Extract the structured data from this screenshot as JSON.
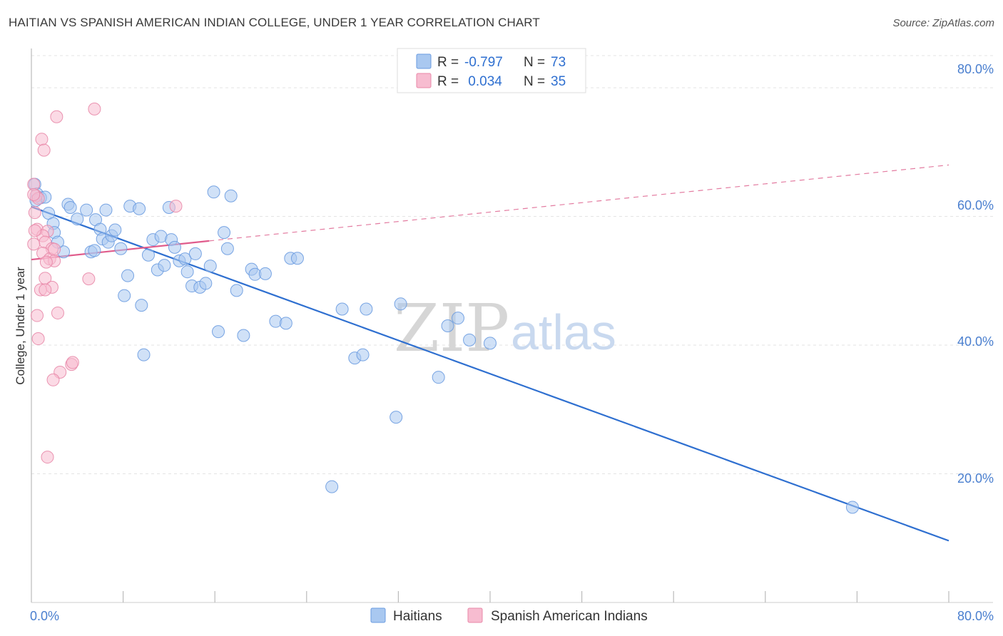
{
  "header": {
    "title": "HAITIAN VS SPANISH AMERICAN INDIAN COLLEGE, UNDER 1 YEAR CORRELATION CHART",
    "source": "Source: ZipAtlas.com"
  },
  "watermark": {
    "zip": "ZIP",
    "atlas": "atlas"
  },
  "legend": {
    "rows": [
      {
        "r_label": "R = ",
        "r_value": "-0.797",
        "n_label": "N = ",
        "n_value": "73",
        "color": "#a9c8f0",
        "stroke": "#6a9be0"
      },
      {
        "r_label": "R = ",
        "r_value": " 0.034",
        "n_label": "N = ",
        "n_value": "35",
        "color": "#f7bcd0",
        "stroke": "#e888a8"
      }
    ]
  },
  "bottom_legend": {
    "items": [
      "Haitians",
      "Spanish American Indians"
    ]
  },
  "chart_data": {
    "type": "scatter",
    "title": "HAITIAN VS SPANISH AMERICAN INDIAN COLLEGE, UNDER 1 YEAR CORRELATION CHART",
    "xlabel": "",
    "ylabel": "College, Under 1 year",
    "xlim": [
      0,
      80
    ],
    "ylim": [
      0,
      85
    ],
    "x_tick_labels": [
      "0.0%",
      "80.0%"
    ],
    "y_ticks": [
      20,
      40,
      60,
      80
    ],
    "y_tick_labels": [
      "20.0%",
      "40.0%",
      "60.0%",
      "80.0%"
    ],
    "grid": true,
    "series": [
      {
        "name": "Haitians",
        "color": "#6a9be0",
        "fill": "#a9c8f0",
        "R": -0.797,
        "N": 73,
        "trend": {
          "x": [
            0,
            80
          ],
          "y": [
            61.5,
            9.6
          ],
          "style": "solid"
        },
        "points": [
          [
            0.3,
            65.0
          ],
          [
            0.5,
            63.5
          ],
          [
            0.8,
            62.9
          ],
          [
            1.2,
            63.0
          ],
          [
            1.5,
            60.5
          ],
          [
            1.9,
            58.9
          ],
          [
            2.0,
            57.5
          ],
          [
            2.8,
            54.5
          ],
          [
            3.2,
            61.9
          ],
          [
            3.4,
            61.4
          ],
          [
            4.0,
            59.6
          ],
          [
            4.8,
            61.0
          ],
          [
            5.2,
            54.5
          ],
          [
            5.5,
            54.7
          ],
          [
            5.6,
            59.5
          ],
          [
            6.0,
            58.0
          ],
          [
            6.2,
            56.5
          ],
          [
            6.5,
            61.0
          ],
          [
            6.7,
            56.0
          ],
          [
            7.0,
            57.0
          ],
          [
            7.3,
            57.9
          ],
          [
            7.8,
            55.0
          ],
          [
            8.1,
            47.7
          ],
          [
            8.4,
            50.8
          ],
          [
            8.6,
            61.6
          ],
          [
            9.4,
            61.2
          ],
          [
            9.6,
            46.2
          ],
          [
            9.8,
            38.5
          ],
          [
            10.2,
            54.0
          ],
          [
            10.6,
            56.4
          ],
          [
            11.0,
            51.7
          ],
          [
            11.3,
            56.9
          ],
          [
            11.6,
            52.4
          ],
          [
            12.0,
            61.4
          ],
          [
            12.2,
            56.4
          ],
          [
            12.5,
            55.2
          ],
          [
            12.9,
            53.1
          ],
          [
            13.4,
            53.4
          ],
          [
            13.6,
            51.4
          ],
          [
            14.0,
            49.2
          ],
          [
            14.3,
            54.2
          ],
          [
            14.7,
            49.0
          ],
          [
            15.2,
            49.6
          ],
          [
            15.6,
            52.3
          ],
          [
            15.9,
            63.8
          ],
          [
            16.3,
            42.1
          ],
          [
            16.8,
            57.5
          ],
          [
            17.1,
            55.0
          ],
          [
            17.4,
            63.2
          ],
          [
            17.9,
            48.5
          ],
          [
            18.5,
            41.5
          ],
          [
            19.2,
            51.8
          ],
          [
            19.5,
            51.0
          ],
          [
            20.4,
            51.1
          ],
          [
            21.3,
            43.7
          ],
          [
            22.2,
            43.4
          ],
          [
            22.6,
            53.5
          ],
          [
            23.2,
            53.5
          ],
          [
            27.1,
            45.6
          ],
          [
            28.2,
            38.0
          ],
          [
            28.9,
            38.5
          ],
          [
            29.2,
            45.6
          ],
          [
            31.8,
            28.8
          ],
          [
            32.2,
            46.4
          ],
          [
            35.5,
            35.0
          ],
          [
            36.3,
            43.0
          ],
          [
            37.2,
            44.2
          ],
          [
            38.2,
            40.8
          ],
          [
            40.0,
            40.3
          ],
          [
            26.2,
            18.0
          ],
          [
            71.6,
            14.8
          ],
          [
            0.4,
            62.5
          ],
          [
            2.3,
            56.0
          ]
        ]
      },
      {
        "name": "Spanish American Indians",
        "color": "#e888a8",
        "fill": "#f7bcd0",
        "R": 0.034,
        "N": 35,
        "trend_solid": {
          "x": [
            0,
            15.5
          ],
          "y": [
            53.3,
            56.2
          ]
        },
        "trend_dashed": {
          "x": [
            15.5,
            80
          ],
          "y": [
            56.2,
            68.0
          ]
        },
        "points": [
          [
            5.5,
            76.7
          ],
          [
            2.2,
            75.5
          ],
          [
            0.9,
            72.0
          ],
          [
            1.1,
            70.3
          ],
          [
            0.2,
            65.0
          ],
          [
            0.4,
            63.2
          ],
          [
            0.6,
            62.8
          ],
          [
            0.3,
            60.6
          ],
          [
            12.6,
            61.6
          ],
          [
            0.5,
            58.0
          ],
          [
            1.4,
            57.7
          ],
          [
            1.0,
            57.0
          ],
          [
            1.2,
            56.0
          ],
          [
            0.2,
            55.7
          ],
          [
            1.8,
            55.0
          ],
          [
            1.0,
            54.3
          ],
          [
            1.6,
            53.4
          ],
          [
            2.0,
            53.1
          ],
          [
            1.3,
            52.9
          ],
          [
            1.2,
            50.4
          ],
          [
            5.0,
            50.3
          ],
          [
            1.8,
            49.0
          ],
          [
            0.8,
            48.6
          ],
          [
            1.2,
            48.6
          ],
          [
            0.5,
            44.6
          ],
          [
            2.3,
            45.0
          ],
          [
            0.6,
            41.0
          ],
          [
            3.5,
            37.0
          ],
          [
            3.6,
            37.3
          ],
          [
            2.5,
            35.8
          ],
          [
            1.9,
            34.6
          ],
          [
            1.4,
            22.6
          ],
          [
            0.2,
            63.4
          ],
          [
            2.0,
            54.9
          ],
          [
            0.3,
            57.8
          ]
        ]
      }
    ]
  }
}
